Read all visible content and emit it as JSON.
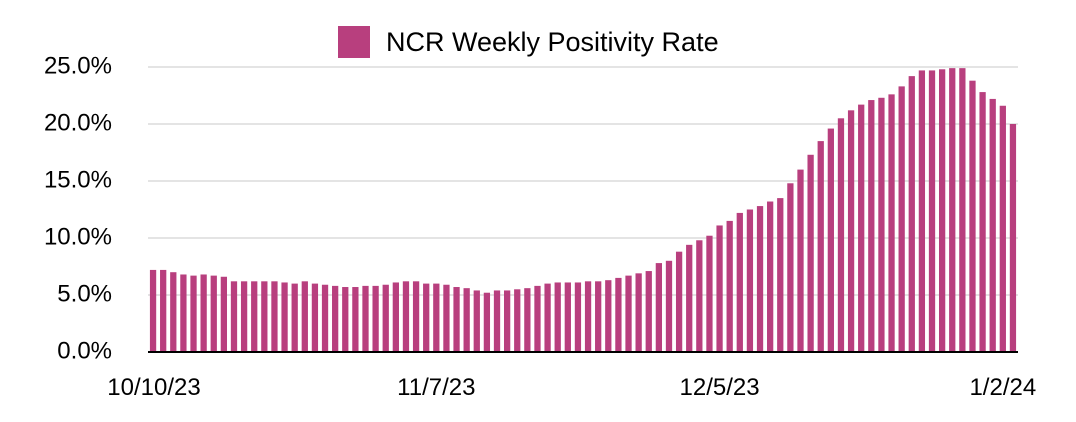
{
  "chart_data": {
    "type": "bar",
    "title": "",
    "xlabel": "",
    "ylabel": "",
    "legend": [
      {
        "name": "NCR Weekly Positivity Rate",
        "color": "#b83f7e"
      }
    ],
    "legend_position": "top-center",
    "ylim": [
      0,
      25
    ],
    "yticks": [
      0,
      5,
      10,
      15,
      20,
      25
    ],
    "ytick_labels": [
      "0.0%",
      "5.0%",
      "10.0%",
      "15.0%",
      "20.0%",
      "25.0%"
    ],
    "xtick_labels": [
      {
        "label": "10/10/23",
        "index": 0
      },
      {
        "label": "11/7/23",
        "index": 28
      },
      {
        "label": "12/5/23",
        "index": 56
      },
      {
        "label": "1/2/24",
        "index": 84
      }
    ],
    "grid": true,
    "series": [
      {
        "name": "NCR Weekly Positivity Rate",
        "color": "#b83f7e",
        "values": [
          7.2,
          7.2,
          7.0,
          6.8,
          6.7,
          6.8,
          6.7,
          6.6,
          6.2,
          6.2,
          6.2,
          6.2,
          6.2,
          6.1,
          6.0,
          6.2,
          6.0,
          5.9,
          5.8,
          5.7,
          5.7,
          5.8,
          5.8,
          5.9,
          6.1,
          6.2,
          6.2,
          6.0,
          6.0,
          5.9,
          5.7,
          5.6,
          5.4,
          5.2,
          5.4,
          5.4,
          5.5,
          5.6,
          5.8,
          6.0,
          6.1,
          6.1,
          6.1,
          6.2,
          6.2,
          6.3,
          6.5,
          6.7,
          6.9,
          7.1,
          7.8,
          8.0,
          8.8,
          9.4,
          9.8,
          10.2,
          11.1,
          11.5,
          12.2,
          12.5,
          12.8,
          13.2,
          13.5,
          14.8,
          16.0,
          17.3,
          18.5,
          19.6,
          20.5,
          21.2,
          21.7,
          22.1,
          22.3,
          22.6,
          23.3,
          24.2,
          24.7,
          24.7,
          24.8,
          24.9,
          24.9,
          23.8,
          22.8,
          22.2,
          21.6,
          20.0
        ]
      }
    ]
  }
}
